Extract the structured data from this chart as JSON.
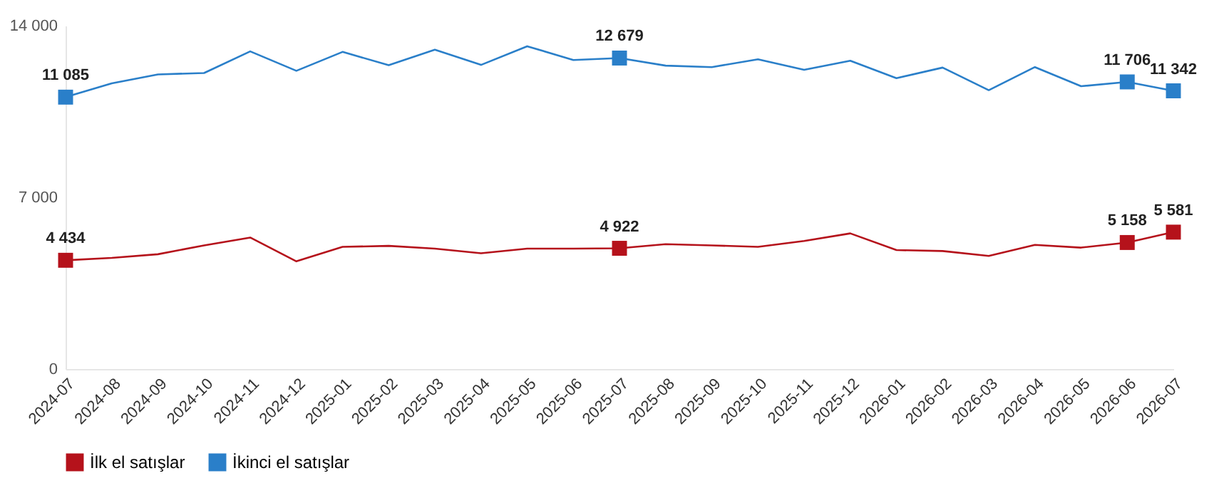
{
  "chart_data": {
    "type": "line",
    "categories": [
      "2024-07",
      "2024-08",
      "2024-09",
      "2024-10",
      "2024-11",
      "2024-12",
      "2025-01",
      "2025-02",
      "2025-03",
      "2025-04",
      "2025-05",
      "2025-06",
      "2025-07",
      "2025-08",
      "2025-09",
      "2025-10",
      "2025-11",
      "2025-12",
      "2026-01",
      "2026-02",
      "2026-03",
      "2026-04",
      "2026-05",
      "2026-06",
      "2026-07"
    ],
    "ylim": [
      0,
      14000
    ],
    "yticks": [
      {
        "value": 0,
        "label": "0"
      },
      {
        "value": 7000,
        "label": "7 000"
      },
      {
        "value": 14000,
        "label": "14 000"
      }
    ],
    "grid": false,
    "legend": "bottom",
    "line_style": "solid",
    "series": [
      {
        "name": "İlk el satışlar",
        "color": "#b5121b",
        "values": [
          4434,
          4530,
          4680,
          5040,
          5360,
          4390,
          4980,
          5020,
          4910,
          4720,
          4910,
          4910,
          4922,
          5090,
          5040,
          4980,
          5220,
          5530,
          4850,
          4810,
          4610,
          5060,
          4950,
          5158,
          5581
        ],
        "value_labels": [
          "4 434",
          null,
          null,
          null,
          null,
          null,
          null,
          null,
          null,
          null,
          null,
          null,
          "4 922",
          null,
          null,
          null,
          null,
          null,
          null,
          null,
          null,
          null,
          null,
          "5 158",
          "5 581"
        ]
      },
      {
        "name": "İkinci el satışlar",
        "color": "#2a7fc9",
        "values": [
          11085,
          11650,
          12010,
          12070,
          12950,
          12160,
          12930,
          12390,
          13020,
          12400,
          13160,
          12600,
          12679,
          12370,
          12310,
          12630,
          12200,
          12570,
          11860,
          12290,
          11370,
          12310,
          11530,
          11706,
          11342
        ],
        "value_labels": [
          "11 085",
          null,
          null,
          null,
          null,
          null,
          null,
          null,
          null,
          null,
          null,
          null,
          "12 679",
          null,
          null,
          null,
          null,
          null,
          null,
          null,
          null,
          null,
          null,
          "11 706",
          "11 342"
        ]
      }
    ]
  }
}
